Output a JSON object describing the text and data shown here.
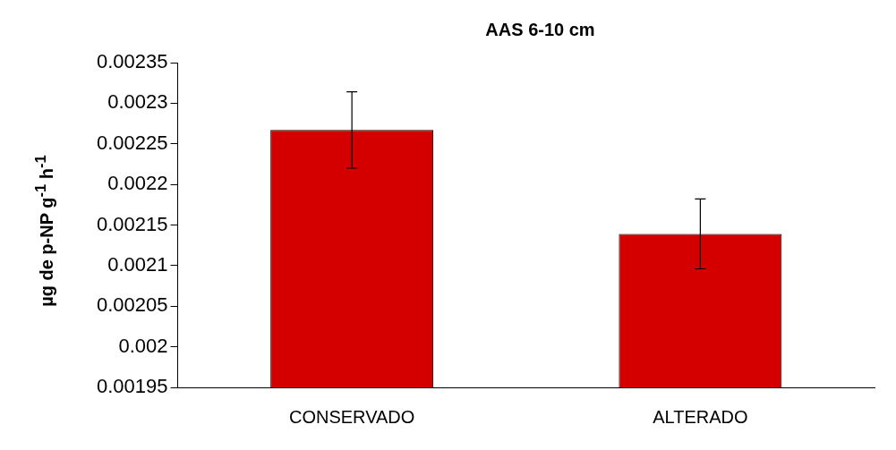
{
  "chart_data": {
    "type": "bar",
    "title": "AAS  6-10 cm",
    "ylabel": "µg de p-NP g$^{-1}$ h$^{-1}$",
    "categories": [
      "CONSERVADO",
      "ALTERADO"
    ],
    "series": [
      {
        "color": "#d40000",
        "values": [
          0.002267,
          0.002139
        ],
        "errors": [
          4.7e-05,
          4.3e-05
        ]
      }
    ],
    "ylim": [
      0.00195,
      0.00235
    ],
    "yticks": [
      0.00195,
      0.002,
      0.00205,
      0.0021,
      0.00215,
      0.0022,
      0.00225,
      0.0023,
      0.00235
    ],
    "grid": false,
    "legend": false
  }
}
